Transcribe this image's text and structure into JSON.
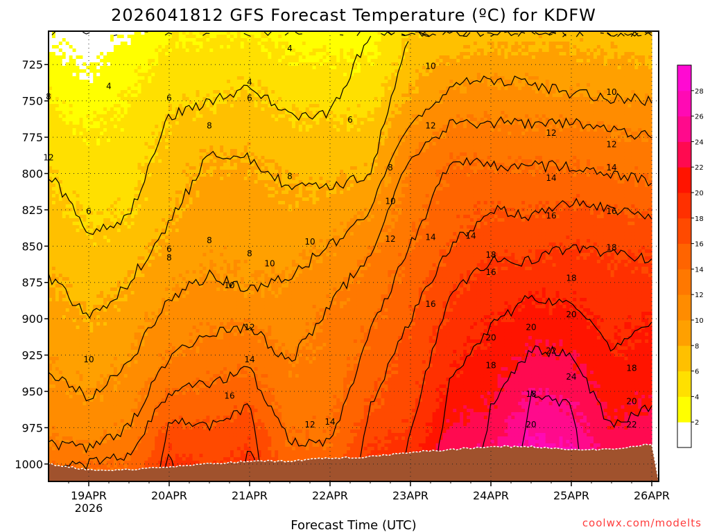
{
  "chart_data": {
    "type": "heatmap",
    "title": "2026041812 GFS Forecast Temperature (ºC) for KDFW",
    "xlabel": "Forecast Time (UTC)",
    "ylabel": "",
    "credit": "coolwx.com/modelts",
    "x_ticks": [
      "19APR",
      "20APR",
      "21APR",
      "22APR",
      "23APR",
      "24APR",
      "25APR",
      "26APR"
    ],
    "x_tick_subtitle": "2026",
    "y_ticks": [
      725,
      750,
      775,
      800,
      825,
      850,
      875,
      900,
      925,
      950,
      975,
      1000
    ],
    "ylim": [
      1012,
      702
    ],
    "xlim_days": [
      "2026-04-18T12",
      "2026-04-26T00"
    ],
    "colorbar": {
      "ticks": [
        2,
        4,
        6,
        8,
        10,
        12,
        14,
        16,
        18,
        20,
        22,
        24,
        26,
        28
      ],
      "colors": [
        "#ffffff",
        "#ffff00",
        "#ffe000",
        "#ffc000",
        "#ffa000",
        "#ff8c00",
        "#ff7800",
        "#ff6400",
        "#ff4a00",
        "#ff3000",
        "#ff1400",
        "#ff0a50",
        "#ff0a8c",
        "#ff0ab4",
        "#ff0ad2"
      ]
    },
    "ground_color": "#a0522d",
    "columns": [
      {
        "time": "18/12",
        "boundaries": [
          4,
          6,
          8,
          10,
          12,
          14
        ],
        "levels": [
          748,
          800,
          870,
          935,
          985,
          1002
        ],
        "surface_hPa": 1000
      },
      {
        "time": "19/00",
        "boundaries": [
          4,
          6,
          8,
          10,
          12,
          14
        ],
        "levels": [
          770,
          840,
          900,
          955,
          990,
          1000
        ],
        "surface_hPa": 1004
      },
      {
        "time": "19/12",
        "boundaries": [
          4,
          6,
          8,
          10,
          12,
          14
        ],
        "levels": [
          745,
          830,
          875,
          930,
          975,
          995
        ],
        "surface_hPa": 1004
      },
      {
        "time": "20/00",
        "boundaries": [
          4,
          6,
          8,
          10,
          12,
          14,
          16,
          18
        ],
        "levels": [
          708,
          760,
          835,
          885,
          925,
          950,
          970,
          990
        ],
        "surface_hPa": 1002
      },
      {
        "time": "20/12",
        "boundaries": [
          4,
          6,
          8,
          10,
          12,
          14,
          16
        ],
        "levels": [
          705,
          750,
          785,
          870,
          910,
          945,
          975
        ],
        "surface_hPa": 1000
      },
      {
        "time": "21/00",
        "boundaries": [
          4,
          6,
          8,
          10,
          12,
          14,
          16,
          18
        ],
        "levels": [
          705,
          740,
          790,
          880,
          905,
          935,
          960,
          985
        ],
        "surface_hPa": 998
      },
      {
        "time": "21/12",
        "boundaries": [
          4,
          6,
          8,
          10,
          12,
          14
        ],
        "levels": [
          718,
          760,
          810,
          870,
          930,
          985
        ],
        "surface_hPa": 998
      },
      {
        "time": "22/00",
        "boundaries": [
          4,
          6,
          8,
          10,
          12,
          14
        ],
        "levels": [
          720,
          760,
          810,
          850,
          890,
          985
        ],
        "surface_hPa": 996
      },
      {
        "time": "22/12",
        "boundaries": [
          6,
          8,
          10,
          12,
          14,
          16
        ],
        "levels": [
          765,
          800,
          825,
          855,
          910,
          960
        ],
        "surface_hPa": 995
      },
      {
        "time": "23/00",
        "boundaries": [
          8,
          10,
          12,
          14,
          16,
          18
        ],
        "levels": [
          745,
          765,
          790,
          850,
          900,
          975
        ],
        "surface_hPa": 992
      },
      {
        "time": "23/12",
        "boundaries": [
          8,
          10,
          12,
          14,
          16,
          18,
          20
        ],
        "levels": [
          720,
          740,
          765,
          790,
          850,
          880,
          940
        ],
        "surface_hPa": 990
      },
      {
        "time": "24/00",
        "boundaries": [
          8,
          10,
          12,
          14,
          16,
          18,
          20,
          22
        ],
        "levels": [
          715,
          735,
          765,
          795,
          825,
          860,
          905,
          960
        ],
        "surface_hPa": 988
      },
      {
        "time": "24/12",
        "boundaries": [
          8,
          10,
          12,
          14,
          16,
          18,
          20,
          22,
          24
        ],
        "levels": [
          715,
          738,
          765,
          795,
          830,
          860,
          885,
          920,
          950
        ],
        "surface_hPa": 988
      },
      {
        "time": "25/00",
        "boundaries": [
          8,
          10,
          12,
          14,
          16,
          18,
          20,
          22,
          24
        ],
        "levels": [
          715,
          745,
          765,
          795,
          820,
          850,
          890,
          925,
          960
        ],
        "surface_hPa": 990
      },
      {
        "time": "25/12",
        "boundaries": [
          8,
          10,
          12,
          14,
          16,
          18,
          20,
          22
        ],
        "levels": [
          720,
          748,
          770,
          800,
          825,
          855,
          920,
          975
        ],
        "surface_hPa": 990
      },
      {
        "time": "26/00",
        "boundaries": [
          8,
          10,
          12,
          14,
          16,
          18,
          20,
          22
        ],
        "levels": [
          725,
          750,
          775,
          805,
          830,
          860,
          900,
          960
        ],
        "surface_hPa": 986
      }
    ],
    "contour_labels": [
      {
        "value": 4,
        "time": "19/06",
        "hPa": 740
      },
      {
        "value": 4,
        "time": "21/12",
        "hPa": 714
      },
      {
        "value": 4,
        "time": "21/00",
        "hPa": 737
      },
      {
        "value": 6,
        "time": "20/00",
        "hPa": 748
      },
      {
        "value": 6,
        "time": "21/00",
        "hPa": 748
      },
      {
        "value": 6,
        "time": "22/06",
        "hPa": 763
      },
      {
        "value": 6,
        "time": "19/00",
        "hPa": 826
      },
      {
        "value": 6,
        "time": "20/00",
        "hPa": 852
      },
      {
        "value": 8,
        "time": "18/12",
        "hPa": 747
      },
      {
        "value": 8,
        "time": "20/12",
        "hPa": 767
      },
      {
        "value": 8,
        "time": "21/12",
        "hPa": 802
      },
      {
        "value": 8,
        "time": "22/18",
        "hPa": 796
      },
      {
        "value": 8,
        "time": "20/12",
        "hPa": 846
      },
      {
        "value": 8,
        "time": "20/00",
        "hPa": 858
      },
      {
        "value": 8,
        "time": "21/00",
        "hPa": 855
      },
      {
        "value": 10,
        "time": "23/06",
        "hPa": 726
      },
      {
        "value": 10,
        "time": "22/18",
        "hPa": 819
      },
      {
        "value": 10,
        "time": "21/18",
        "hPa": 847
      },
      {
        "value": 10,
        "time": "21/06",
        "hPa": 862
      },
      {
        "value": 10,
        "time": "20/18",
        "hPa": 877
      },
      {
        "value": 10,
        "time": "19/00",
        "hPa": 928
      },
      {
        "value": 10,
        "time": "25/12",
        "hPa": 744
      },
      {
        "value": 12,
        "time": "23/06",
        "hPa": 767
      },
      {
        "value": 12,
        "time": "24/18",
        "hPa": 772
      },
      {
        "value": 12,
        "time": "25/12",
        "hPa": 780
      },
      {
        "value": 12,
        "time": "18/12",
        "hPa": 789
      },
      {
        "value": 12,
        "time": "22/18",
        "hPa": 845
      },
      {
        "value": 12,
        "time": "21/00",
        "hPa": 906
      },
      {
        "value": 12,
        "time": "21/18",
        "hPa": 973
      },
      {
        "value": 14,
        "time": "23/06",
        "hPa": 844
      },
      {
        "value": 14,
        "time": "23/18",
        "hPa": 843
      },
      {
        "value": 14,
        "time": "24/18",
        "hPa": 803
      },
      {
        "value": 14,
        "time": "25/12",
        "hPa": 796
      },
      {
        "value": 14,
        "time": "21/00",
        "hPa": 928
      },
      {
        "value": 14,
        "time": "22/00",
        "hPa": 971
      },
      {
        "value": 16,
        "time": "20/18",
        "hPa": 953
      },
      {
        "value": 16,
        "time": "23/06",
        "hPa": 890
      },
      {
        "value": 16,
        "time": "24/00",
        "hPa": 868
      },
      {
        "value": 16,
        "time": "24/18",
        "hPa": 829
      },
      {
        "value": 16,
        "time": "25/12",
        "hPa": 826
      },
      {
        "value": 18,
        "time": "24/00",
        "hPa": 856
      },
      {
        "value": 18,
        "time": "25/00",
        "hPa": 872
      },
      {
        "value": 18,
        "time": "25/12",
        "hPa": 851
      },
      {
        "value": 18,
        "time": "24/00",
        "hPa": 932
      },
      {
        "value": 18,
        "time": "24/12",
        "hPa": 952
      },
      {
        "value": 18,
        "time": "25/18",
        "hPa": 934
      },
      {
        "value": 20,
        "time": "24/00",
        "hPa": 913
      },
      {
        "value": 20,
        "time": "24/12",
        "hPa": 906
      },
      {
        "value": 20,
        "time": "25/00",
        "hPa": 897
      },
      {
        "value": 20,
        "time": "24/12",
        "hPa": 973
      },
      {
        "value": 20,
        "time": "25/18",
        "hPa": 957
      },
      {
        "value": 22,
        "time": "24/18",
        "hPa": 922
      },
      {
        "value": 22,
        "time": "25/18",
        "hPa": 973
      },
      {
        "value": 24,
        "time": "25/00",
        "hPa": 940
      }
    ]
  }
}
